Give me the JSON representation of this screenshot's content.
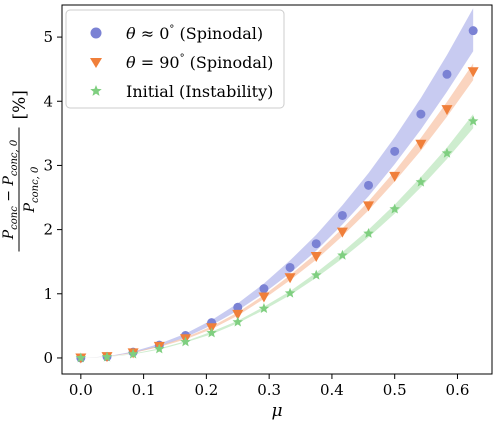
{
  "chart_data": {
    "type": "scatter",
    "xlabel": "μ",
    "ylabel": {
      "numerator_a": "P",
      "numerator_a_sub": "conc",
      "minus": " − ",
      "numerator_b": "P",
      "numerator_b_sub": "conc, 0",
      "denominator": "P",
      "denominator_sub": "conc, 0",
      "unit": "[%]"
    },
    "xlim": [
      -0.03,
      0.655
    ],
    "ylim": [
      -0.25,
      5.5
    ],
    "xticks": [
      "0.0",
      "0.1",
      "0.2",
      "0.3",
      "0.4",
      "0.5",
      "0.6"
    ],
    "xtick_values": [
      0.0,
      0.1,
      0.2,
      0.3,
      0.4,
      0.5,
      0.6
    ],
    "yticks": [
      "0",
      "1",
      "2",
      "3",
      "4",
      "5"
    ],
    "ytick_values": [
      0,
      1,
      2,
      3,
      4,
      5
    ],
    "grid": false,
    "legend_position": "top-left",
    "x": [
      0.0,
      0.0417,
      0.0833,
      0.125,
      0.1667,
      0.2083,
      0.25,
      0.2917,
      0.3333,
      0.375,
      0.4167,
      0.4583,
      0.5,
      0.5417,
      0.5833,
      0.625
    ],
    "series": [
      {
        "name_parts": [
          "θ",
          " ≈ 0",
          "°",
          " (Spinodal)"
        ],
        "marker": "circle",
        "color": "#7b82d4",
        "band_color": "#9aa0e6",
        "values": [
          0.0,
          0.02,
          0.09,
          0.2,
          0.35,
          0.55,
          0.79,
          1.08,
          1.41,
          1.78,
          2.22,
          2.69,
          3.22,
          3.8,
          4.42,
          5.1
        ],
        "band_lower": [
          0.0,
          0.02,
          0.08,
          0.18,
          0.32,
          0.51,
          0.74,
          1.01,
          1.32,
          1.67,
          2.08,
          2.52,
          3.02,
          3.56,
          4.15,
          4.78
        ],
        "band_upper": [
          0.0,
          0.025,
          0.1,
          0.22,
          0.38,
          0.59,
          0.85,
          1.16,
          1.52,
          1.92,
          2.38,
          2.88,
          3.44,
          4.05,
          4.72,
          5.45
        ]
      },
      {
        "name_parts": [
          "θ",
          " = 90",
          "°",
          " (Spinodal)"
        ],
        "marker": "triangle-down",
        "color": "#f07f3a",
        "band_color": "#f6b08a",
        "values": [
          0.0,
          0.02,
          0.08,
          0.18,
          0.3,
          0.47,
          0.68,
          0.95,
          1.25,
          1.58,
          1.96,
          2.37,
          2.83,
          3.33,
          3.87,
          4.46
        ],
        "band_lower": [
          0.0,
          0.02,
          0.075,
          0.17,
          0.29,
          0.45,
          0.66,
          0.92,
          1.21,
          1.53,
          1.9,
          2.3,
          2.75,
          3.23,
          3.76,
          4.33
        ],
        "band_upper": [
          0.0,
          0.022,
          0.085,
          0.19,
          0.32,
          0.49,
          0.71,
          0.98,
          1.29,
          1.63,
          2.02,
          2.44,
          2.91,
          3.43,
          3.99,
          4.59
        ]
      },
      {
        "name": "Initial (Instability)",
        "marker": "star",
        "color": "#7fcf80",
        "band_color": "#a6dea7",
        "values": [
          0.0,
          0.015,
          0.06,
          0.14,
          0.25,
          0.39,
          0.56,
          0.77,
          1.01,
          1.29,
          1.6,
          1.94,
          2.32,
          2.74,
          3.19,
          3.69
        ],
        "band_lower": [
          0.0,
          0.015,
          0.055,
          0.13,
          0.24,
          0.37,
          0.54,
          0.75,
          0.98,
          1.25,
          1.55,
          1.88,
          2.25,
          2.66,
          3.1,
          3.58
        ],
        "band_upper": [
          0.0,
          0.017,
          0.065,
          0.15,
          0.26,
          0.41,
          0.58,
          0.8,
          1.04,
          1.33,
          1.65,
          2.0,
          2.39,
          2.82,
          3.28,
          3.8
        ]
      }
    ]
  }
}
